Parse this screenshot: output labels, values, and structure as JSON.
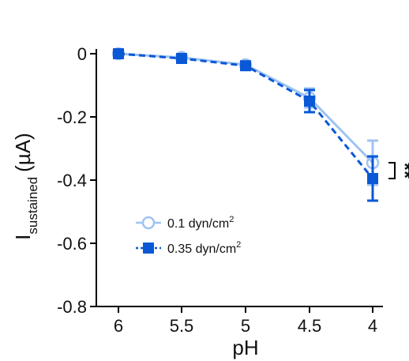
{
  "chart_data": {
    "type": "line",
    "title": "",
    "xlabel": "pH",
    "ylabel_main": "I",
    "ylabel_sub": "sustained",
    "ylabel_unit": "(µA)",
    "x_categories": [
      "6",
      "5.5",
      "5",
      "4.5",
      "4"
    ],
    "y_ticks": [
      "0",
      "-0.2",
      "-0.4",
      "-0.6",
      "-0.8"
    ],
    "y_tick_values": [
      0,
      -0.2,
      -0.4,
      -0.6,
      -0.8
    ],
    "ylim": [
      -0.8,
      0
    ],
    "grid": false,
    "legend_position": "lower-left",
    "series": [
      {
        "name": "0.1 dyn/cm",
        "name_sup": "2",
        "marker": "open-circle",
        "line_style": "solid",
        "color": "#9fc3f3",
        "values": [
          0.0,
          -0.012,
          -0.035,
          -0.14,
          -0.345
        ],
        "errors": [
          0.008,
          0.008,
          0.01,
          0.03,
          0.07
        ]
      },
      {
        "name": "0.35 dyn/cm",
        "name_sup": "2",
        "marker": "filled-square",
        "line_style": "dashed",
        "color": "#0a58d6",
        "values": [
          0.0,
          -0.015,
          -0.038,
          -0.15,
          -0.395
        ],
        "errors": [
          0.01,
          0.01,
          0.012,
          0.035,
          0.07
        ]
      }
    ],
    "annotation": "**"
  }
}
